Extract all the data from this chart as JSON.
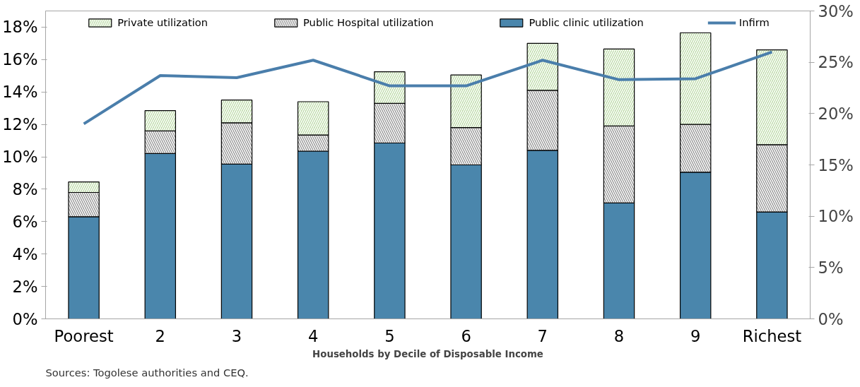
{
  "chart_data": {
    "type": "bar",
    "stacked": true,
    "xlabel": "Households by Decile of Disposable Income",
    "categories": [
      "Poorest",
      "2",
      "3",
      "4",
      "5",
      "6",
      "7",
      "8",
      "9",
      "Richest"
    ],
    "series": [
      {
        "name": "Public clinic utilization",
        "color": "#4a86ac",
        "values": [
          6.3,
          10.2,
          9.55,
          10.35,
          10.85,
          9.5,
          10.4,
          7.15,
          9.05,
          6.6
        ]
      },
      {
        "name": "Public Hospital utilization",
        "color": "#8c8c8c",
        "values": [
          1.5,
          1.4,
          2.55,
          1.0,
          2.45,
          2.3,
          3.7,
          4.75,
          2.95,
          4.15
        ]
      },
      {
        "name": "Private utilization",
        "color": "#b9d9a3",
        "values": [
          0.65,
          1.25,
          1.4,
          2.05,
          1.95,
          3.25,
          2.9,
          4.75,
          5.65,
          5.85
        ]
      },
      {
        "name": "Infirm",
        "type": "line",
        "axis": "y2",
        "color": "#4a7eab",
        "values": [
          19.0,
          23.7,
          23.5,
          25.2,
          22.7,
          22.7,
          25.2,
          23.3,
          23.4,
          26.0
        ]
      }
    ],
    "ylim": [
      0,
      19
    ],
    "yticks": [
      {
        "value": 0,
        "label": "0%"
      },
      {
        "value": 2,
        "label": "2%"
      },
      {
        "value": 4,
        "label": "4%"
      },
      {
        "value": 6,
        "label": "6%"
      },
      {
        "value": 8,
        "label": "8%"
      },
      {
        "value": 10,
        "label": "10%"
      },
      {
        "value": 12,
        "label": "12%"
      },
      {
        "value": 14,
        "label": "14%"
      },
      {
        "value": 16,
        "label": "16%"
      },
      {
        "value": 18,
        "label": "18%"
      }
    ],
    "y2lim": [
      0,
      30
    ],
    "y2ticks": [
      {
        "value": 0,
        "label": "0%"
      },
      {
        "value": 5,
        "label": "5%"
      },
      {
        "value": 10,
        "label": "10%"
      },
      {
        "value": 15,
        "label": "15%"
      },
      {
        "value": 20,
        "label": "20%"
      },
      {
        "value": 25,
        "label": "25%"
      },
      {
        "value": 30,
        "label": "30%"
      }
    ],
    "legend": "top",
    "grid": false,
    "annotations": [
      "Sources: Togolese authorities and CEQ."
    ]
  }
}
